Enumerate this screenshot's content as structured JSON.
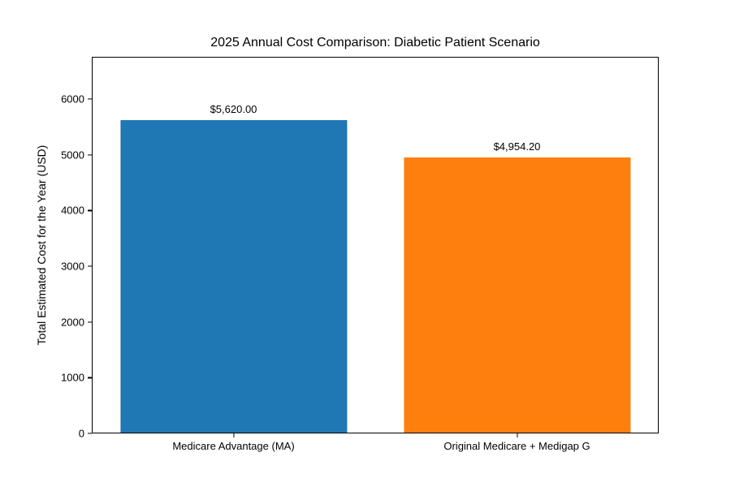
{
  "chart_data": {
    "type": "bar",
    "title": "2025 Annual Cost Comparison: Diabetic Patient Scenario",
    "xlabel": "",
    "ylabel": "Total Estimated Cost for the Year (USD)",
    "categories": [
      "Medicare Advantage (MA)",
      "Original Medicare + Medigap G"
    ],
    "values": [
      5620.0,
      4954.2
    ],
    "value_labels": [
      "$5,620.00",
      "$4,954.20"
    ],
    "bar_colors": [
      "#1f77b4",
      "#ff7f0e"
    ],
    "yticks": [
      0,
      1000,
      2000,
      3000,
      4000,
      5000,
      6000
    ],
    "ylim": [
      0,
      6760
    ],
    "grid": false,
    "legend": "none",
    "background_color": "#ffffff",
    "text_color": "#000000"
  }
}
